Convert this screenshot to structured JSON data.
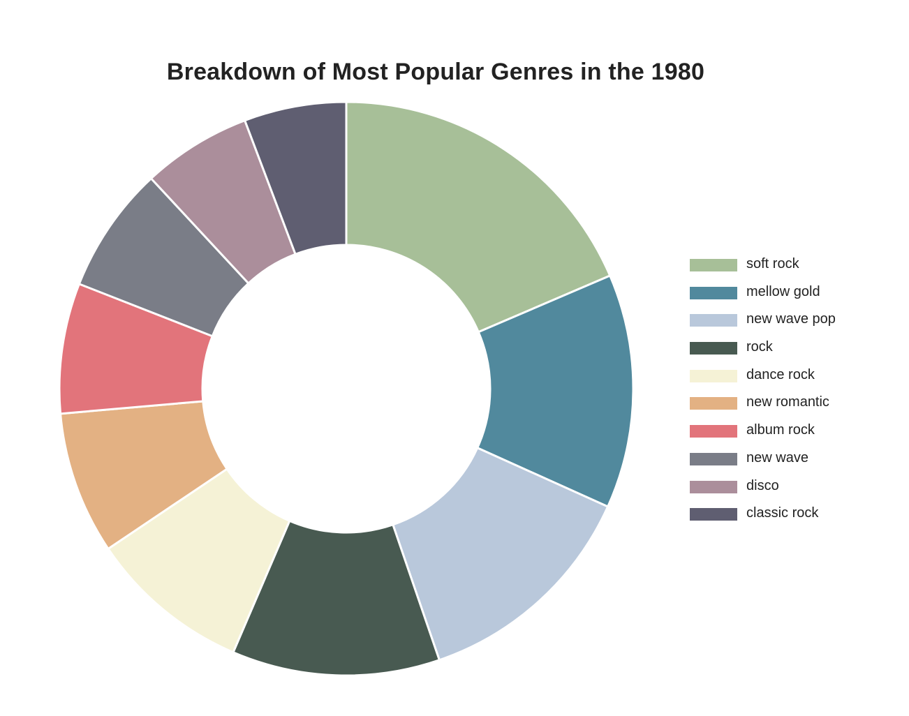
{
  "chart_data": {
    "type": "pie",
    "title": "Breakdown of Most Popular Genres in the 1980",
    "donut": true,
    "legend_position": "right",
    "categories": [
      "soft rock",
      "mellow gold",
      "new wave pop",
      "rock",
      "dance rock",
      "new romantic",
      "album rock",
      "new wave",
      "disco",
      "classic rock"
    ],
    "values": [
      18.7,
      13.3,
      13.1,
      11.8,
      9.2,
      8.1,
      7.4,
      7.2,
      6.2,
      5.8
    ],
    "colors": [
      "#a7bf98",
      "#51899d",
      "#b9c8db",
      "#485a51",
      "#f5f2d6",
      "#e3b183",
      "#e2747b",
      "#7a7d87",
      "#ab8e9b",
      "#5f5e71"
    ]
  }
}
